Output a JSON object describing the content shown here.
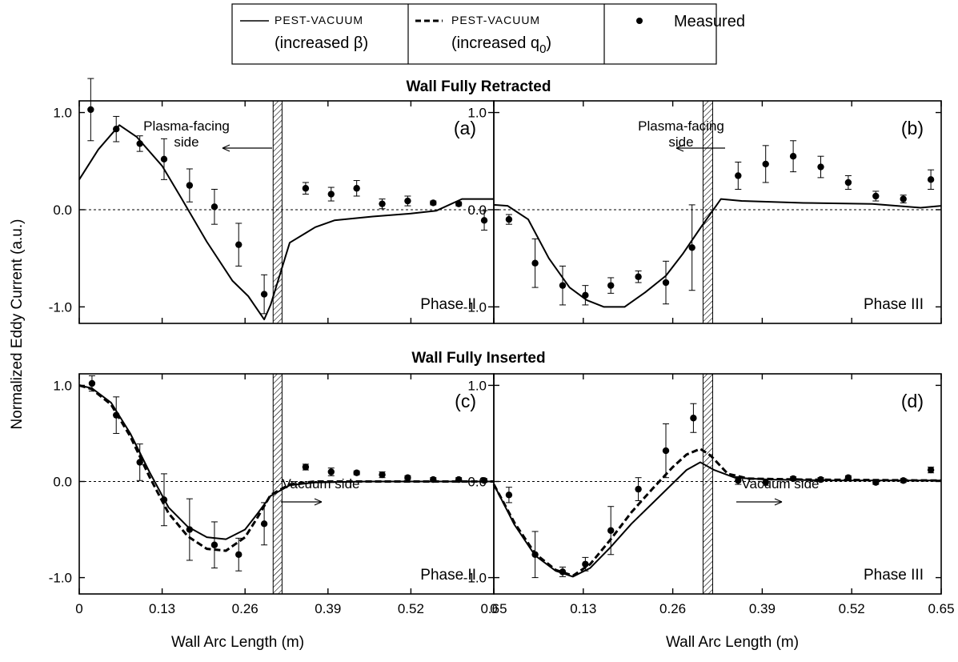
{
  "legend": {
    "entries": [
      {
        "line1": "PEST-VACUUM",
        "line2": "(increased  β)",
        "style": "solid"
      },
      {
        "line1": "PEST-VACUUM",
        "line2": "(increased q",
        "sub": "0",
        "close": ")",
        "style": "dashed"
      },
      {
        "line1": "Measured",
        "style": "marker"
      }
    ]
  },
  "section_titles": {
    "top": "Wall Fully Retracted",
    "bottom": "Wall Fully Inserted"
  },
  "ylabel": "Normalized Eddy Current (a.u.)",
  "xlabel": "Wall Arc Length (m)",
  "colors": {
    "line": "#000000",
    "zero_line": "#000000"
  },
  "chart_data": [
    {
      "id": "a",
      "type": "line",
      "panel_label": "(a)",
      "phase": "Phase II",
      "annotation": {
        "line1": "Plasma-facing",
        "line2": "side",
        "arrow": "left"
      },
      "xlim": [
        0,
        0.65
      ],
      "ylim": [
        -1.17,
        1.12
      ],
      "xticks": [
        0,
        0.13,
        0.26,
        0.39,
        0.52,
        0.65
      ],
      "xtick_labels": [],
      "yticks": [
        -1.0,
        0.0,
        1.0
      ],
      "ytick_labels": [
        "-1.0",
        "0.0",
        "1.0"
      ],
      "wall_x": [
        0.304,
        0.318
      ],
      "series": [
        {
          "style": "solid",
          "points": [
            [
              0,
              0.31
            ],
            [
              0.03,
              0.62
            ],
            [
              0.063,
              0.87
            ],
            [
              0.09,
              0.75
            ],
            [
              0.13,
              0.45
            ],
            [
              0.16,
              0.12
            ],
            [
              0.2,
              -0.33
            ],
            [
              0.24,
              -0.73
            ],
            [
              0.265,
              -0.89
            ],
            [
              0.29,
              -1.13
            ],
            [
              0.3,
              -0.98
            ],
            [
              0.33,
              -0.34
            ],
            [
              0.37,
              -0.18
            ],
            [
              0.4,
              -0.11
            ],
            [
              0.46,
              -0.07
            ],
            [
              0.52,
              -0.04
            ],
            [
              0.56,
              -0.01
            ],
            [
              0.6,
              0.11
            ],
            [
              0.65,
              0.11
            ]
          ]
        }
      ],
      "measured": [
        {
          "x": 0.018,
          "y": 1.03,
          "err": 0.32
        },
        {
          "x": 0.058,
          "y": 0.83,
          "err": 0.13
        },
        {
          "x": 0.095,
          "y": 0.68,
          "err": 0.08
        },
        {
          "x": 0.133,
          "y": 0.52,
          "err": 0.21
        },
        {
          "x": 0.173,
          "y": 0.25,
          "err": 0.17
        },
        {
          "x": 0.212,
          "y": 0.03,
          "err": 0.18
        },
        {
          "x": 0.25,
          "y": -0.36,
          "err": 0.22
        },
        {
          "x": 0.29,
          "y": -0.87,
          "err": 0.2
        },
        {
          "x": 0.355,
          "y": 0.22,
          "err": 0.06
        },
        {
          "x": 0.395,
          "y": 0.16,
          "err": 0.07
        },
        {
          "x": 0.435,
          "y": 0.22,
          "err": 0.08
        },
        {
          "x": 0.475,
          "y": 0.06,
          "err": 0.05
        },
        {
          "x": 0.515,
          "y": 0.09,
          "err": 0.05
        },
        {
          "x": 0.555,
          "y": 0.07,
          "err": 0.02
        },
        {
          "x": 0.595,
          "y": 0.06,
          "err": 0.02
        },
        {
          "x": 0.635,
          "y": -0.11,
          "err": 0.1
        }
      ]
    },
    {
      "id": "b",
      "type": "line",
      "panel_label": "(b)",
      "phase": "Phase III",
      "annotation": {
        "line1": "Plasma-facing",
        "line2": "side",
        "arrow": "left"
      },
      "xlim": [
        0,
        0.65
      ],
      "ylim": [
        -1.17,
        1.12
      ],
      "xticks": [
        0,
        0.13,
        0.26,
        0.39,
        0.52,
        0.65
      ],
      "xtick_labels": [],
      "yticks": [
        -1.0,
        0.0,
        1.0
      ],
      "ytick_labels": [
        "-1.0",
        "0.0",
        "1.0"
      ],
      "wall_x": [
        0.304,
        0.318
      ],
      "series": [
        {
          "style": "solid",
          "points": [
            [
              0,
              0.05
            ],
            [
              0.02,
              0.04
            ],
            [
              0.05,
              -0.1
            ],
            [
              0.08,
              -0.5
            ],
            [
              0.11,
              -0.8
            ],
            [
              0.135,
              -0.93
            ],
            [
              0.16,
              -1.0
            ],
            [
              0.19,
              -1.0
            ],
            [
              0.22,
              -0.85
            ],
            [
              0.25,
              -0.68
            ],
            [
              0.275,
              -0.45
            ],
            [
              0.3,
              -0.19
            ],
            [
              0.33,
              0.11
            ],
            [
              0.36,
              0.09
            ],
            [
              0.45,
              0.07
            ],
            [
              0.55,
              0.06
            ],
            [
              0.62,
              0.02
            ],
            [
              0.65,
              0.04
            ]
          ]
        }
      ],
      "measured": [
        {
          "x": 0.022,
          "y": -0.1,
          "err": 0.05
        },
        {
          "x": 0.06,
          "y": -0.55,
          "err": 0.25
        },
        {
          "x": 0.1,
          "y": -0.78,
          "err": 0.2
        },
        {
          "x": 0.133,
          "y": -0.88,
          "err": 0.1
        },
        {
          "x": 0.17,
          "y": -0.78,
          "err": 0.08
        },
        {
          "x": 0.21,
          "y": -0.69,
          "err": 0.06
        },
        {
          "x": 0.25,
          "y": -0.75,
          "err": 0.22
        },
        {
          "x": 0.288,
          "y": -0.39,
          "err": 0.44
        },
        {
          "x": 0.355,
          "y": 0.35,
          "err": 0.14
        },
        {
          "x": 0.395,
          "y": 0.47,
          "err": 0.19
        },
        {
          "x": 0.435,
          "y": 0.55,
          "err": 0.16
        },
        {
          "x": 0.475,
          "y": 0.44,
          "err": 0.11
        },
        {
          "x": 0.515,
          "y": 0.28,
          "err": 0.07
        },
        {
          "x": 0.555,
          "y": 0.14,
          "err": 0.05
        },
        {
          "x": 0.595,
          "y": 0.11,
          "err": 0.04
        },
        {
          "x": 0.635,
          "y": 0.31,
          "err": 0.1
        }
      ]
    },
    {
      "id": "c",
      "type": "line",
      "panel_label": "(c)",
      "phase": "Phase II",
      "annotation": {
        "line1": "Vacuum side",
        "arrow": "right"
      },
      "xlim": [
        0,
        0.65
      ],
      "ylim": [
        -1.17,
        1.12
      ],
      "xticks": [
        0,
        0.13,
        0.26,
        0.39,
        0.52,
        0.65
      ],
      "xtick_labels": [
        "0",
        "0.13",
        "0.26",
        "0.39",
        "0.52",
        "0.65"
      ],
      "yticks": [
        -1.0,
        0.0,
        1.0
      ],
      "ytick_labels": [
        "-1.0",
        "0.0",
        "1.0"
      ],
      "wall_x": [
        0.304,
        0.318
      ],
      "series": [
        {
          "style": "solid",
          "points": [
            [
              0,
              1.0
            ],
            [
              0.02,
              0.97
            ],
            [
              0.05,
              0.82
            ],
            [
              0.08,
              0.5
            ],
            [
              0.11,
              0.1
            ],
            [
              0.14,
              -0.27
            ],
            [
              0.17,
              -0.47
            ],
            [
              0.2,
              -0.58
            ],
            [
              0.23,
              -0.6
            ],
            [
              0.26,
              -0.5
            ],
            [
              0.28,
              -0.33
            ],
            [
              0.3,
              -0.15
            ],
            [
              0.33,
              -0.04
            ],
            [
              0.37,
              -0.01
            ],
            [
              0.45,
              0.0
            ],
            [
              0.65,
              0.0
            ]
          ]
        },
        {
          "style": "dashed",
          "points": [
            [
              0,
              1.0
            ],
            [
              0.02,
              0.96
            ],
            [
              0.05,
              0.8
            ],
            [
              0.08,
              0.47
            ],
            [
              0.11,
              0.05
            ],
            [
              0.14,
              -0.33
            ],
            [
              0.17,
              -0.57
            ],
            [
              0.2,
              -0.7
            ],
            [
              0.23,
              -0.72
            ],
            [
              0.26,
              -0.58
            ],
            [
              0.28,
              -0.37
            ],
            [
              0.3,
              -0.14
            ],
            [
              0.33,
              -0.03
            ],
            [
              0.37,
              0.0
            ],
            [
              0.65,
              0.0
            ]
          ]
        }
      ],
      "measured": [
        {
          "x": 0.02,
          "y": 1.02,
          "err": 0.08
        },
        {
          "x": 0.058,
          "y": 0.69,
          "err": 0.19
        },
        {
          "x": 0.095,
          "y": 0.2,
          "err": 0.19
        },
        {
          "x": 0.133,
          "y": -0.19,
          "err": 0.27
        },
        {
          "x": 0.173,
          "y": -0.5,
          "err": 0.32
        },
        {
          "x": 0.212,
          "y": -0.66,
          "err": 0.24
        },
        {
          "x": 0.25,
          "y": -0.76,
          "err": 0.17
        },
        {
          "x": 0.29,
          "y": -0.44,
          "err": 0.22
        },
        {
          "x": 0.355,
          "y": 0.15,
          "err": 0.03
        },
        {
          "x": 0.395,
          "y": 0.1,
          "err": 0.04
        },
        {
          "x": 0.435,
          "y": 0.09,
          "err": 0.02
        },
        {
          "x": 0.475,
          "y": 0.07,
          "err": 0.03
        },
        {
          "x": 0.515,
          "y": 0.04,
          "err": 0.02
        },
        {
          "x": 0.555,
          "y": 0.02,
          "err": 0.02
        },
        {
          "x": 0.595,
          "y": 0.02,
          "err": 0.02
        },
        {
          "x": 0.635,
          "y": 0.01,
          "err": 0.02
        }
      ]
    },
    {
      "id": "d",
      "type": "line",
      "panel_label": "(d)",
      "phase": "Phase III",
      "annotation": {
        "line1": "Vacuum side",
        "arrow": "right"
      },
      "xlim": [
        0,
        0.65
      ],
      "ylim": [
        -1.17,
        1.12
      ],
      "xticks": [
        0,
        0.13,
        0.26,
        0.39,
        0.52,
        0.65
      ],
      "xtick_labels": [
        "0",
        "0.13",
        "0.26",
        "0.39",
        "0.52",
        "0.65"
      ],
      "yticks": [
        -1.0,
        0.0,
        1.0
      ],
      "ytick_labels": [
        "-1.0",
        "0.0",
        "1.0"
      ],
      "wall_x": [
        0.304,
        0.318
      ],
      "series": [
        {
          "style": "solid",
          "points": [
            [
              0,
              -0.03
            ],
            [
              0.03,
              -0.45
            ],
            [
              0.06,
              -0.77
            ],
            [
              0.09,
              -0.93
            ],
            [
              0.115,
              -0.99
            ],
            [
              0.14,
              -0.9
            ],
            [
              0.17,
              -0.68
            ],
            [
              0.2,
              -0.44
            ],
            [
              0.23,
              -0.23
            ],
            [
              0.26,
              -0.02
            ],
            [
              0.28,
              0.12
            ],
            [
              0.3,
              0.2
            ],
            [
              0.32,
              0.12
            ],
            [
              0.35,
              0.04
            ],
            [
              0.4,
              0.02
            ],
            [
              0.5,
              0.01
            ],
            [
              0.65,
              0.01
            ]
          ]
        },
        {
          "style": "dashed",
          "points": [
            [
              0,
              -0.03
            ],
            [
              0.03,
              -0.43
            ],
            [
              0.06,
              -0.75
            ],
            [
              0.09,
              -0.92
            ],
            [
              0.115,
              -0.98
            ],
            [
              0.14,
              -0.86
            ],
            [
              0.17,
              -0.6
            ],
            [
              0.2,
              -0.32
            ],
            [
              0.23,
              -0.08
            ],
            [
              0.26,
              0.15
            ],
            [
              0.28,
              0.28
            ],
            [
              0.3,
              0.34
            ],
            [
              0.315,
              0.27
            ],
            [
              0.34,
              0.08
            ],
            [
              0.37,
              0.03
            ],
            [
              0.45,
              0.02
            ],
            [
              0.65,
              0.01
            ]
          ]
        }
      ],
      "measured": [
        {
          "x": 0.022,
          "y": -0.14,
          "err": 0.08
        },
        {
          "x": 0.06,
          "y": -0.76,
          "err": 0.24
        },
        {
          "x": 0.1,
          "y": -0.94,
          "err": 0.05
        },
        {
          "x": 0.133,
          "y": -0.86,
          "err": 0.07
        },
        {
          "x": 0.17,
          "y": -0.51,
          "err": 0.25
        },
        {
          "x": 0.21,
          "y": -0.08,
          "err": 0.12
        },
        {
          "x": 0.25,
          "y": 0.32,
          "err": 0.28
        },
        {
          "x": 0.29,
          "y": 0.66,
          "err": 0.15
        },
        {
          "x": 0.355,
          "y": 0.01,
          "err": 0.04
        },
        {
          "x": 0.395,
          "y": -0.01,
          "err": 0.03
        },
        {
          "x": 0.435,
          "y": 0.03,
          "err": 0.02
        },
        {
          "x": 0.475,
          "y": 0.02,
          "err": 0.02
        },
        {
          "x": 0.515,
          "y": 0.04,
          "err": 0.02
        },
        {
          "x": 0.555,
          "y": -0.01,
          "err": 0.02
        },
        {
          "x": 0.595,
          "y": 0.01,
          "err": 0.02
        },
        {
          "x": 0.635,
          "y": 0.12,
          "err": 0.03
        }
      ]
    }
  ]
}
